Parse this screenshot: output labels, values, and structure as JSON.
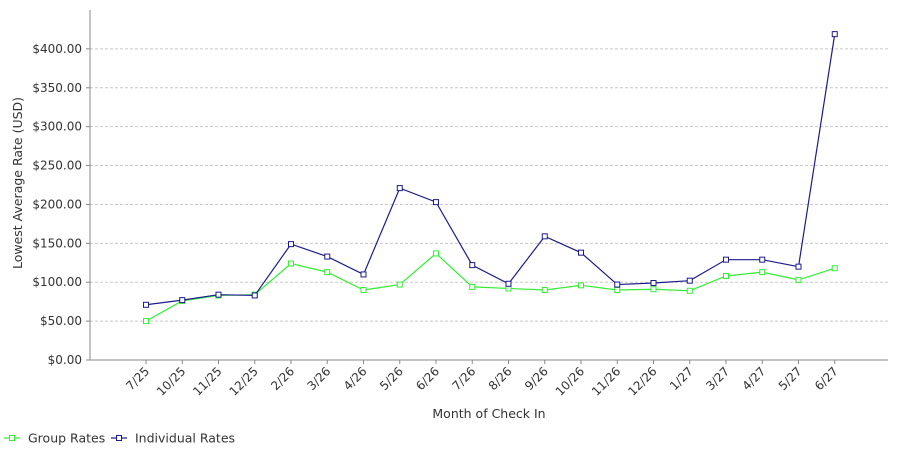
{
  "chart_data": {
    "type": "line",
    "title": "",
    "xlabel": "Month of Check In",
    "ylabel": "Lowest Average Rate (USD)",
    "ylim": [
      0,
      450
    ],
    "ytick_values": [
      0,
      50,
      100,
      150,
      200,
      250,
      300,
      350,
      400
    ],
    "ytick_labels": [
      "$0.00",
      "$50.00",
      "$100.00",
      "$150.00",
      "$200.00",
      "$250.00",
      "$300.00",
      "$350.00",
      "$400.00"
    ],
    "categories": [
      "7/25",
      "10/25",
      "11/25",
      "12/25",
      "2/26",
      "3/26",
      "4/26",
      "5/26",
      "6/26",
      "7/26",
      "8/26",
      "9/26",
      "10/26",
      "11/26",
      "12/26",
      "1/27",
      "3/27",
      "4/27",
      "5/27",
      "6/27"
    ],
    "grid": "horizontal",
    "legend_position": "bottom-left",
    "series": [
      {
        "name": "Group Rates",
        "color": "#33ee33",
        "values": [
          50,
          76,
          83,
          84,
          124,
          113,
          90,
          97,
          137,
          94,
          92,
          90,
          96,
          90,
          91,
          89,
          108,
          113,
          103,
          118
        ]
      },
      {
        "name": "Individual Rates",
        "color": "#1c1c8c",
        "values": [
          71,
          77,
          84,
          83,
          149,
          133,
          110,
          221,
          203,
          122,
          98,
          159,
          138,
          97,
          99,
          102,
          129,
          129,
          120,
          419
        ]
      }
    ]
  }
}
